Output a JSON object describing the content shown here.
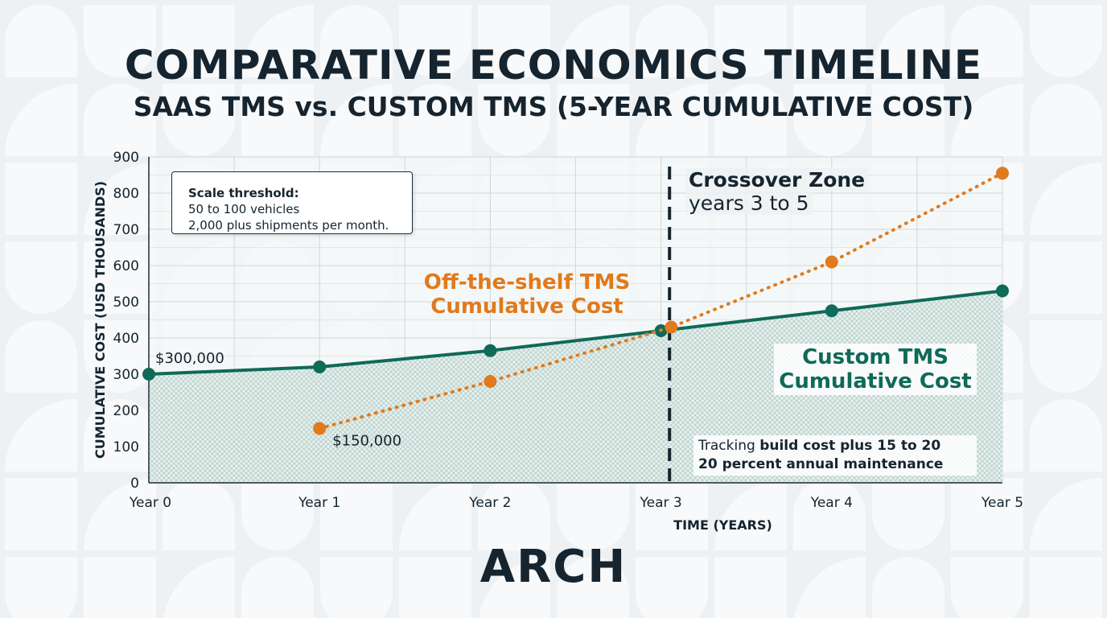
{
  "header": {
    "title": "COMPARATIVE ECONOMICS TIMELINE",
    "subtitle": "SAAS TMS vs. CUSTOM TMS (5-YEAR CUMULATIVE COST)"
  },
  "threshold_box": {
    "heading": "Scale threshold:",
    "line1": "50 to 100 vehicles",
    "line2": "2,000 plus shipments per month."
  },
  "crossover": {
    "title": "Crossover Zone",
    "subtitle": "years 3 to 5"
  },
  "tracking_note": {
    "prefix": "Tracking ",
    "bold1": "build cost plus 15 to 20",
    "bold2": "20 percent annual maintenance"
  },
  "logo": "ARCH",
  "colors": {
    "custom": "#0f6a58",
    "saas": "#e07a1c",
    "text": "#15242f",
    "grid": "#cfd6dc"
  },
  "chart_data": {
    "type": "line",
    "xlabel": "TIME (YEARS)",
    "ylabel": "CUMULATIVE COST (USD THOUSANDS)",
    "categories": [
      "Year 0",
      "Year 1",
      "Year 2",
      "Year 3",
      "Year 4",
      "Year 5"
    ],
    "x": [
      0,
      1,
      2,
      3,
      4,
      5
    ],
    "ylim": [
      0,
      900
    ],
    "yticks": [
      0,
      100,
      200,
      300,
      400,
      500,
      600,
      700,
      800,
      900
    ],
    "grid": true,
    "crossover_x": 3.05,
    "series": [
      {
        "name": "Custom TMS Cumulative Cost",
        "key": "custom",
        "style": "solid",
        "filled": true,
        "x": [
          0,
          1,
          2,
          3,
          4,
          5
        ],
        "values": [
          300,
          320,
          365,
          420,
          475,
          530
        ]
      },
      {
        "name": "Off-the-shelf TMS Cumulative Cost",
        "key": "saas",
        "style": "dotted",
        "filled": false,
        "x": [
          1,
          2,
          3.06,
          4,
          5
        ],
        "values": [
          150,
          280,
          430,
          610,
          855
        ]
      }
    ],
    "annotations": [
      {
        "text": "$300,000",
        "x": 0,
        "y": 300,
        "series": "custom"
      },
      {
        "text": "$150,000",
        "x": 1,
        "y": 150,
        "series": "saas"
      }
    ]
  }
}
